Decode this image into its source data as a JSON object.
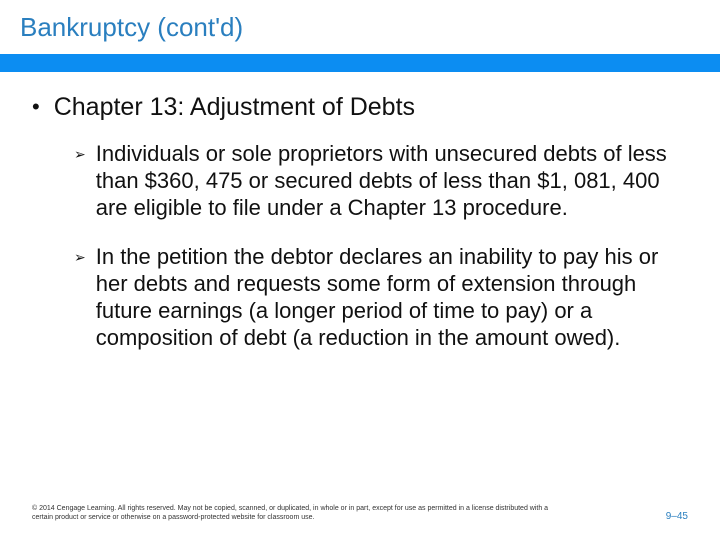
{
  "title": "Bankruptcy (cont'd)",
  "chapter_heading": "Chapter 13: Adjustment of Debts",
  "bullets": [
    "Individuals or sole proprietors with unsecured debts of less than $360, 475 or secured debts of less than $1, 081, 400 are eligible to file under a Chapter 13 procedure.",
    "In the petition the debtor declares an inability to pay his or her debts and requests some form of extension through future earnings (a longer period of time to pay) or a composition of debt (a reduction in the amount owed)."
  ],
  "copyright": "© 2014 Cengage Learning. All rights reserved. May not be copied, scanned, or duplicated, in whole or in part, except for use as permitted in a license distributed with a certain product or service or otherwise on a password-protected website for classroom use.",
  "page_number": "9–45",
  "colors": {
    "title_color": "#2a7fbf",
    "stripe_color": "#0c8df2",
    "text_color": "#111111",
    "page_num_color": "#2a7fbf",
    "background": "#ffffff"
  },
  "typography": {
    "title_fontsize": 26,
    "chapter_fontsize": 25,
    "body_fontsize": 22,
    "copyright_fontsize": 7,
    "pagenum_fontsize": 10
  }
}
